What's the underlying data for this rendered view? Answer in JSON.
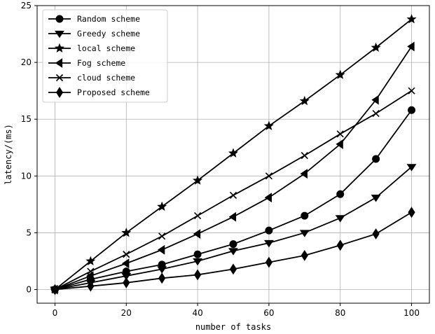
{
  "chart_data": {
    "type": "line",
    "title": "",
    "xlabel": "number of tasks",
    "ylabel": "latency/(ms)",
    "xlim": [
      -5,
      105
    ],
    "ylim": [
      -1.2,
      25
    ],
    "xticks": [
      0,
      20,
      40,
      60,
      80,
      100
    ],
    "yticks": [
      0,
      5,
      10,
      15,
      20,
      25
    ],
    "grid": true,
    "legend_position": "top-left",
    "line_color": "#000000",
    "x": [
      0,
      10,
      20,
      30,
      40,
      50,
      60,
      70,
      80,
      90,
      100
    ],
    "series": [
      {
        "name": "Random scheme",
        "marker": "circle",
        "values": [
          0,
          0.9,
          1.6,
          2.2,
          3.1,
          4.0,
          5.2,
          6.5,
          8.4,
          11.5,
          15.8
        ]
      },
      {
        "name": "Greedy scheme",
        "marker": "triangle-down",
        "values": [
          0,
          0.6,
          1.2,
          1.8,
          2.5,
          3.4,
          4.1,
          5.0,
          6.3,
          8.1,
          10.8
        ]
      },
      {
        "name": "local scheme",
        "marker": "star",
        "values": [
          0,
          2.5,
          5.0,
          7.3,
          9.6,
          12.0,
          14.4,
          16.6,
          18.9,
          21.3,
          23.8
        ]
      },
      {
        "name": "Fog scheme",
        "marker": "triangle-left",
        "values": [
          0,
          1.2,
          2.3,
          3.5,
          4.9,
          6.4,
          8.1,
          10.2,
          12.8,
          16.7,
          21.4
        ]
      },
      {
        "name": "cloud scheme",
        "marker": "x",
        "values": [
          0,
          1.6,
          3.1,
          4.7,
          6.5,
          8.3,
          10.0,
          11.8,
          13.7,
          15.5,
          17.5
        ]
      },
      {
        "name": "Proposed scheme",
        "marker": "diamond",
        "values": [
          0,
          0.3,
          0.6,
          1.0,
          1.3,
          1.8,
          2.4,
          3.0,
          3.9,
          4.9,
          6.8
        ]
      }
    ]
  }
}
